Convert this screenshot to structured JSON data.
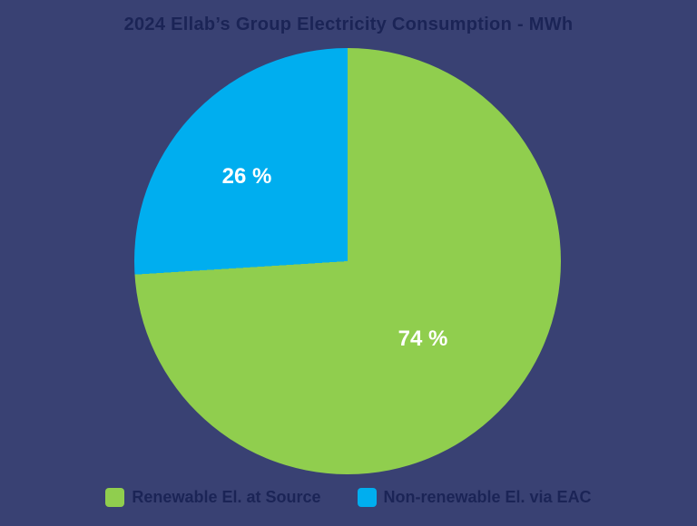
{
  "colors": {
    "background": "#394173",
    "title_text": "#1B2456",
    "slice_label_text": "#FFFFFF",
    "legend_text": "#1B2456"
  },
  "chart_data": {
    "type": "pie",
    "title": "2024 Ellab’s Group Electricity Consumption - MWh",
    "unit": "MWh",
    "start_angle_deg": 0,
    "direction": "clockwise",
    "legend_position": "bottom",
    "slices": [
      {
        "name": "Renewable El. at Source",
        "value_pct": 74,
        "label": "74 %",
        "color": "#90CE4E"
      },
      {
        "name": "Non-renewable El. via EAC",
        "value_pct": 26,
        "label": "26 %",
        "color": "#00AEEF"
      }
    ]
  }
}
